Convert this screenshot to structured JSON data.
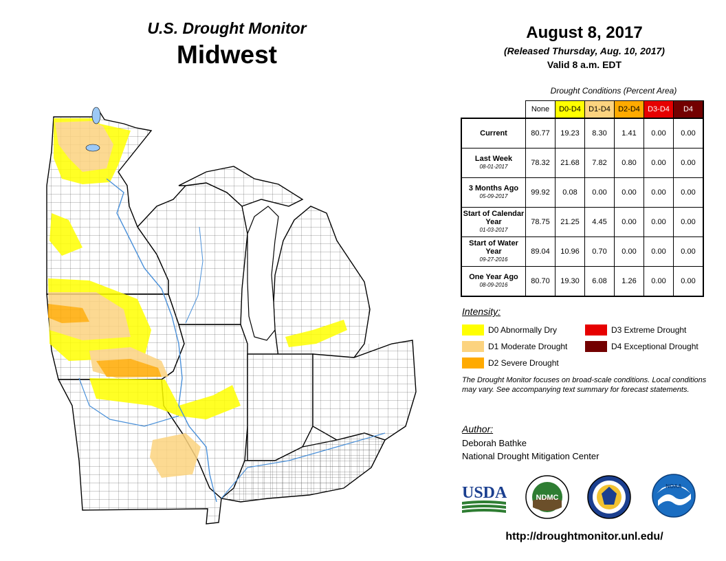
{
  "header": {
    "product": "U.S. Drought Monitor",
    "region": "Midwest",
    "date": "August 8, 2017",
    "released": "(Released Thursday, Aug. 10, 2017)",
    "valid": "Valid 8 a.m. EDT"
  },
  "table": {
    "caption": "Drought Conditions (Percent Area)",
    "columns": [
      {
        "label": "None",
        "color": "#ffffff",
        "text": "#000000"
      },
      {
        "label": "D0-D4",
        "color": "#ffff00",
        "text": "#000000"
      },
      {
        "label": "D1-D4",
        "color": "#fcd37f",
        "text": "#000000"
      },
      {
        "label": "D2-D4",
        "color": "#ffaa00",
        "text": "#000000"
      },
      {
        "label": "D3-D4",
        "color": "#e60000",
        "text": "#ffffff"
      },
      {
        "label": "D4",
        "color": "#730000",
        "text": "#ffffff"
      }
    ],
    "rows": [
      {
        "label": "Current",
        "date": "",
        "values": [
          "80.77",
          "19.23",
          "8.30",
          "1.41",
          "0.00",
          "0.00"
        ]
      },
      {
        "label": "Last Week",
        "date": "08-01-2017",
        "values": [
          "78.32",
          "21.68",
          "7.82",
          "0.80",
          "0.00",
          "0.00"
        ]
      },
      {
        "label": "3 Months Ago",
        "date": "05-09-2017",
        "values": [
          "99.92",
          "0.08",
          "0.00",
          "0.00",
          "0.00",
          "0.00"
        ]
      },
      {
        "label": "Start of Calendar Year",
        "date": "01-03-2017",
        "values": [
          "78.75",
          "21.25",
          "4.45",
          "0.00",
          "0.00",
          "0.00"
        ]
      },
      {
        "label": "Start of Water Year",
        "date": "09-27-2016",
        "values": [
          "89.04",
          "10.96",
          "0.70",
          "0.00",
          "0.00",
          "0.00"
        ]
      },
      {
        "label": "One Year Ago",
        "date": "08-09-2016",
        "values": [
          "80.70",
          "19.30",
          "6.08",
          "1.26",
          "0.00",
          "0.00"
        ]
      }
    ]
  },
  "legend": {
    "heading": "Intensity:",
    "items": [
      {
        "label": "D0 Abnormally Dry",
        "color": "#ffff00"
      },
      {
        "label": "D1 Moderate Drought",
        "color": "#fcd37f"
      },
      {
        "label": "D2 Severe Drought",
        "color": "#ffaa00"
      },
      {
        "label": "D3 Extreme Drought",
        "color": "#e60000"
      },
      {
        "label": "D4 Exceptional Drought",
        "color": "#730000"
      }
    ]
  },
  "note": "The Drought Monitor focuses on broad-scale conditions. Local conditions may vary. See accompanying text summary for forecast statements.",
  "author": {
    "heading": "Author:",
    "name": "Deborah Bathke",
    "org": "National Drought Mitigation Center"
  },
  "logos": {
    "usda": "USDA",
    "ndmc": "NDMC",
    "noaa": "NOAA"
  },
  "url": "http://droughtmonitor.unl.edu/",
  "map": {
    "states": [
      "Minnesota",
      "Iowa",
      "Missouri",
      "Wisconsin",
      "Illinois",
      "Michigan",
      "Indiana",
      "Ohio",
      "Kentucky"
    ],
    "colors": {
      "water": "#9cc9f5",
      "river": "#4a90d9",
      "none": "#ffffff"
    }
  }
}
